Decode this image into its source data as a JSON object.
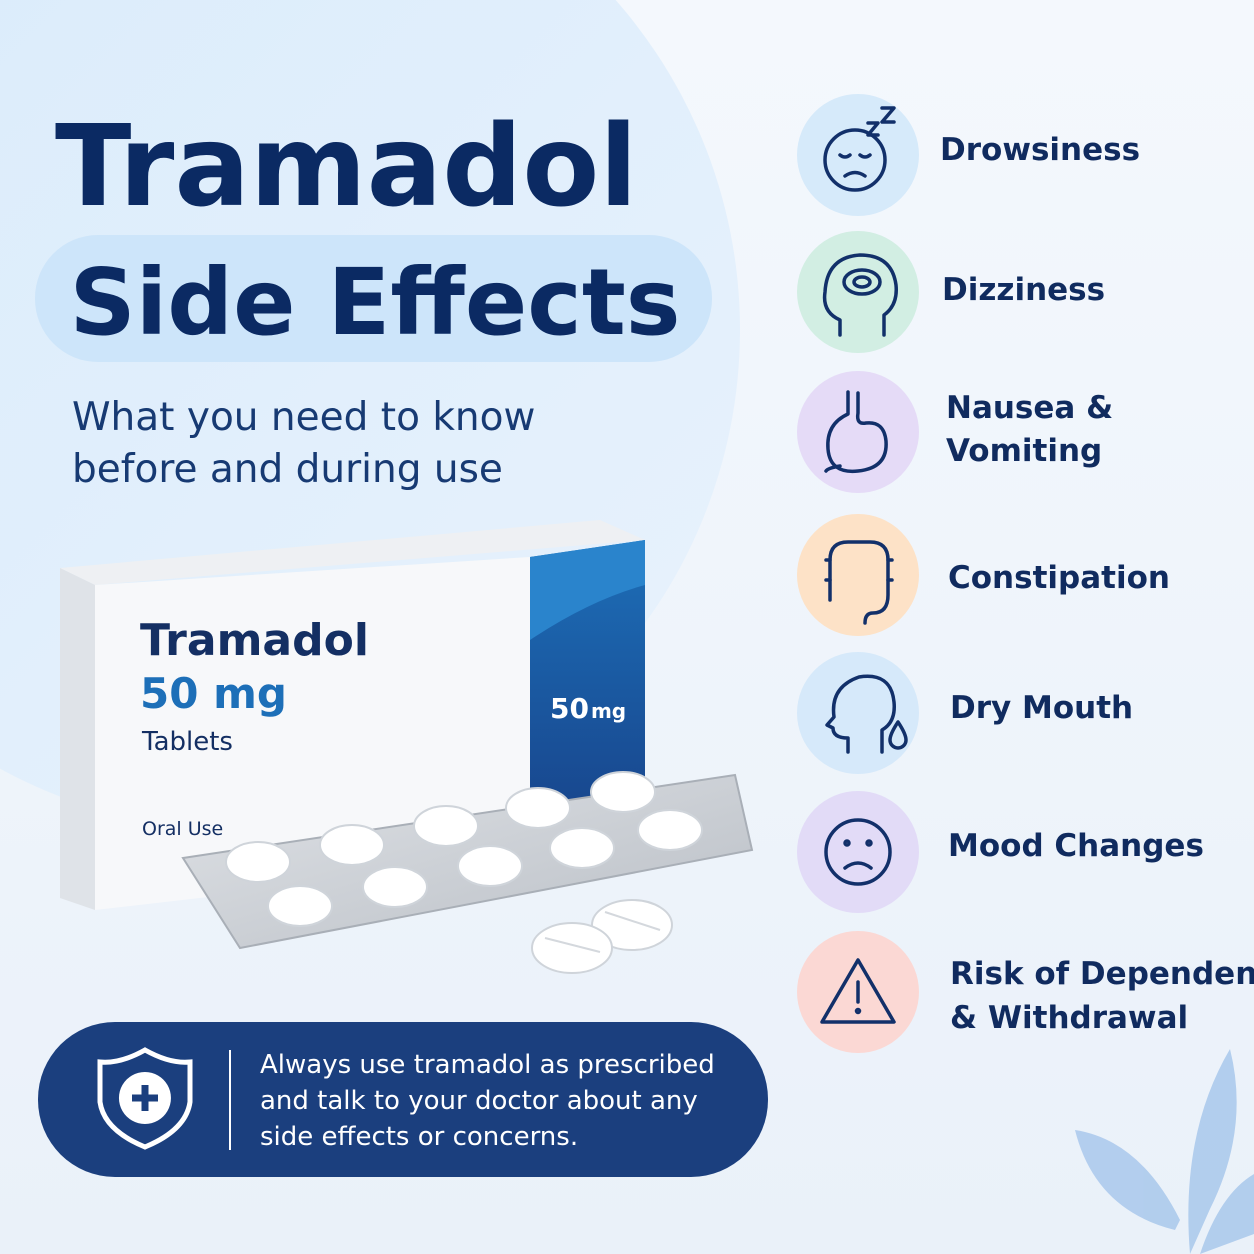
{
  "header": {
    "title": "Tramadol",
    "highlight": "Side Effects",
    "subtitle": [
      "What you need to know",
      "before and during use"
    ]
  },
  "package": {
    "name": "Tramadol",
    "strength": "50 mg",
    "form": "Tablets",
    "route": "Oral Use",
    "side_strength": "50",
    "side_unit": "mg"
  },
  "side_effects": [
    {
      "label": [
        "Drowsiness"
      ]
    },
    {
      "label": [
        "Dizziness"
      ]
    },
    {
      "label": [
        "Nausea &",
        "Vomiting"
      ]
    },
    {
      "label": [
        "Constipation"
      ]
    },
    {
      "label": [
        "Dry Mouth"
      ]
    },
    {
      "label": [
        "Mood Changes"
      ]
    },
    {
      "label": [
        "Risk of Dependence",
        "& Withdrawal"
      ]
    }
  ],
  "notice": {
    "lines": [
      "Always use tramadol as prescribed",
      "and talk to your doctor about any",
      "side effects or concerns."
    ]
  }
}
